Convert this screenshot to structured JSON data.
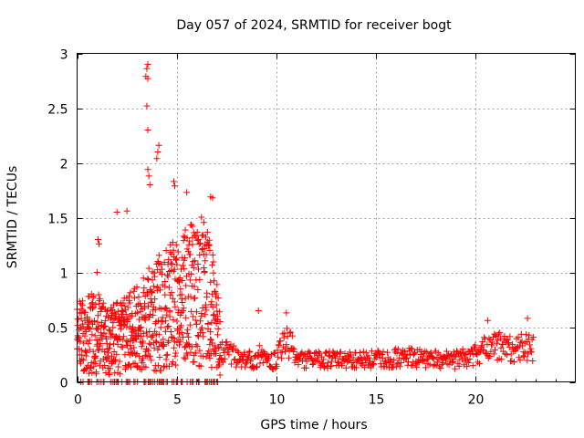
{
  "chart_data": {
    "type": "scatter",
    "title": "Day 057 of 2024, SRMTID for receiver bogt",
    "xlabel": "GPS time / hours",
    "ylabel": "SRMTID / TECUs",
    "xlim": [
      0,
      25
    ],
    "ylim": [
      0,
      3
    ],
    "x_ticks": [
      0,
      5,
      10,
      15,
      20
    ],
    "x_tick_labels": [
      "0",
      "5",
      "10",
      "15",
      "20"
    ],
    "y_ticks": [
      0,
      0.5,
      1,
      1.5,
      2,
      2.5,
      3
    ],
    "y_tick_labels": [
      "0",
      "0.5",
      "1",
      "1.5",
      "2",
      "2.5",
      "3"
    ],
    "grid": true,
    "marker": "+",
    "color": "#ff0000",
    "series": [
      {
        "name": "SRMTID",
        "profile_hours": [
          0,
          0.5,
          1,
          1.5,
          2,
          2.5,
          3,
          3.5,
          4,
          4.5,
          5,
          5.5,
          6,
          6.5,
          6.9,
          7.3,
          8,
          8.5,
          9,
          9.3,
          9.6,
          10,
          10.4,
          10.7,
          11,
          11.5,
          12,
          13,
          14,
          15,
          16,
          17,
          18,
          19,
          20,
          20.5,
          21,
          21.5,
          22,
          22.5,
          22.9
        ],
        "typical_srmtid": [
          0.42,
          0.45,
          0.48,
          0.4,
          0.42,
          0.45,
          0.5,
          0.6,
          0.65,
          0.7,
          0.75,
          0.8,
          0.85,
          0.9,
          0.6,
          0.3,
          0.22,
          0.2,
          0.2,
          0.28,
          0.18,
          0.2,
          0.38,
          0.35,
          0.22,
          0.2,
          0.2,
          0.2,
          0.2,
          0.21,
          0.22,
          0.22,
          0.2,
          0.2,
          0.25,
          0.3,
          0.33,
          0.32,
          0.3,
          0.33,
          0.3
        ],
        "peak_points": [
          {
            "x": 3.55,
            "y": 2.9
          },
          {
            "x": 3.5,
            "y": 2.86
          },
          {
            "x": 3.45,
            "y": 2.79
          },
          {
            "x": 3.55,
            "y": 2.77
          },
          {
            "x": 3.5,
            "y": 2.52
          },
          {
            "x": 3.55,
            "y": 2.3
          },
          {
            "x": 4.1,
            "y": 2.16
          },
          {
            "x": 4.05,
            "y": 2.1
          },
          {
            "x": 4.0,
            "y": 2.04
          },
          {
            "x": 3.55,
            "y": 1.94
          },
          {
            "x": 3.6,
            "y": 1.88
          },
          {
            "x": 3.65,
            "y": 1.8
          },
          {
            "x": 4.85,
            "y": 1.83
          },
          {
            "x": 4.9,
            "y": 1.79
          },
          {
            "x": 6.7,
            "y": 1.69
          },
          {
            "x": 6.8,
            "y": 1.68
          },
          {
            "x": 5.5,
            "y": 1.73
          },
          {
            "x": 1.05,
            "y": 1.3
          },
          {
            "x": 1.1,
            "y": 1.26
          },
          {
            "x": 2.0,
            "y": 1.55
          },
          {
            "x": 2.5,
            "y": 1.56
          },
          {
            "x": 1.0,
            "y": 1.0
          },
          {
            "x": 9.1,
            "y": 0.65
          },
          {
            "x": 10.5,
            "y": 0.63
          },
          {
            "x": 20.6,
            "y": 0.56
          },
          {
            "x": 22.6,
            "y": 0.58
          }
        ]
      }
    ]
  }
}
